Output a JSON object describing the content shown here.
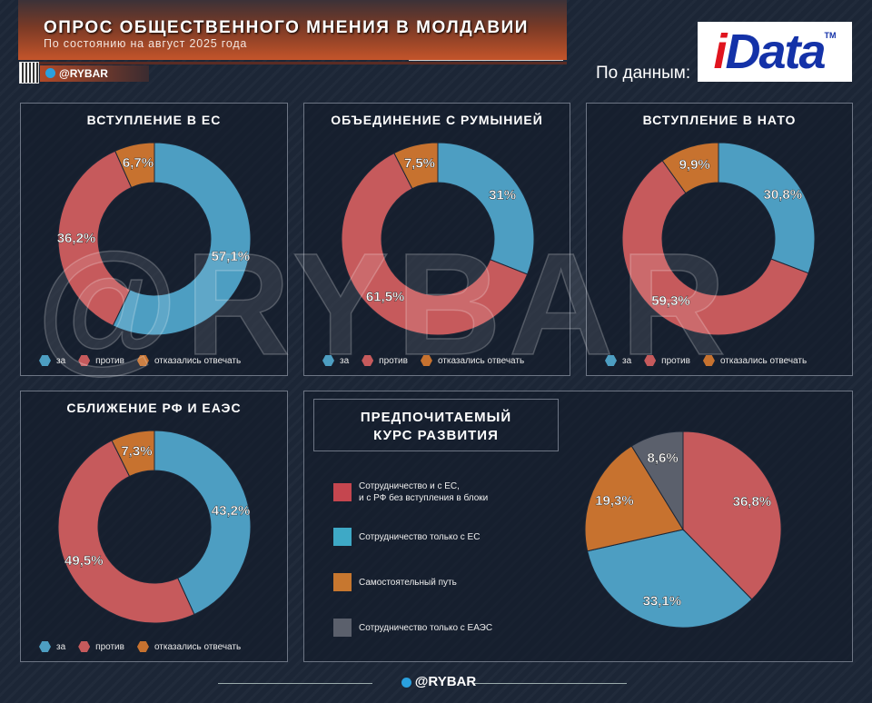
{
  "header": {
    "title": "ОПРОС ОБЩЕСТВЕННОГО МНЕНИЯ В МОЛДАВИИ",
    "subtitle": "По состоянию на август 2025 года",
    "brand": "@RYBAR"
  },
  "source": {
    "label": "По данным:",
    "logo": "iData"
  },
  "watermark": "@RYBAR",
  "footer": {
    "brand": "@RYBAR"
  },
  "colors": {
    "za": "#4d9ec2",
    "protiv": "#c65a5c",
    "otkaz": "#c7722f",
    "eaes": "#5b606c"
  },
  "donut_legend": [
    "за",
    "против",
    "отказались отвечать"
  ],
  "chart_data": [
    {
      "type": "pie",
      "subtype": "donut",
      "title": "ВСТУПЛЕНИЕ В ЕС",
      "categories": [
        "за",
        "против",
        "отказались отвечать"
      ],
      "values": [
        57.1,
        36.2,
        6.7
      ],
      "labels": [
        "57,1%",
        "36,2%",
        "6,7%"
      ]
    },
    {
      "type": "pie",
      "subtype": "donut",
      "title": "ОБЪЕДИНЕНИЕ С РУМЫНИЕЙ",
      "categories": [
        "за",
        "против",
        "отказались отвечать"
      ],
      "values": [
        31,
        61.5,
        7.5
      ],
      "labels": [
        "31%",
        "61,5%",
        "7,5%"
      ]
    },
    {
      "type": "pie",
      "subtype": "donut",
      "title": "ВСТУПЛЕНИЕ В НАТО",
      "categories": [
        "за",
        "против",
        "отказались отвечать"
      ],
      "values": [
        30.8,
        59.3,
        9.9
      ],
      "labels": [
        "30,8%",
        "59,3%",
        "9,9%"
      ]
    },
    {
      "type": "pie",
      "subtype": "donut",
      "title": "СБЛИЖЕНИЕ РФ И ЕАЭС",
      "categories": [
        "за",
        "против",
        "отказались отвечать"
      ],
      "values": [
        43.2,
        49.5,
        7.3
      ],
      "labels": [
        "43,2%",
        "49,5%",
        "7,3%"
      ]
    },
    {
      "type": "pie",
      "title_line1": "ПРЕДПОЧИТАЕМЫЙ",
      "title_line2": "КУРС РАЗВИТИЯ",
      "categories": [
        "Сотрудничество и с ЕС,",
        "Сотрудничество только с ЕС",
        "Самостоятельный путь",
        "Сотрудничество только с ЕАЭС"
      ],
      "category1_line2": "и с РФ без вступления в блоки",
      "values": [
        36.8,
        33.1,
        19.3,
        8.6
      ],
      "labels": [
        "36,8%",
        "33,1%",
        "19,3%",
        "8,6%"
      ]
    }
  ]
}
